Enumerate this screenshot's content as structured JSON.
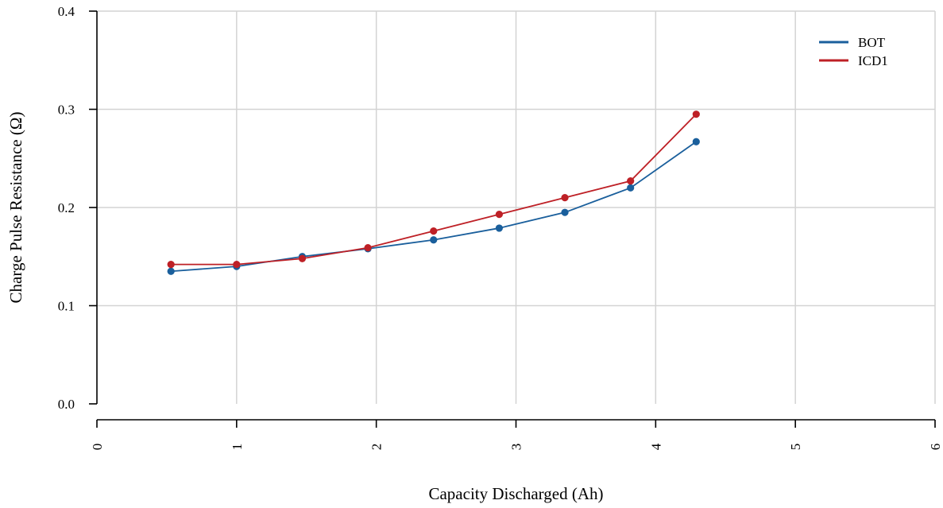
{
  "chart_data": {
    "type": "line",
    "xlabel": "Capacity Discharged (Ah)",
    "ylabel": "Charge Pulse Resistance (Ω)",
    "xlim": [
      0,
      6
    ],
    "ylim": [
      0.0,
      0.4
    ],
    "x_ticks": [
      "0",
      "1",
      "2",
      "3",
      "4",
      "5",
      "6"
    ],
    "y_ticks": [
      "0.0",
      "0.1",
      "0.2",
      "0.3",
      "0.4"
    ],
    "grid": true,
    "legend_position": "top-right",
    "series": [
      {
        "name": "BOT",
        "color": "#1a5f9c",
        "x": [
          0.53,
          1.0,
          1.47,
          1.94,
          2.41,
          2.88,
          3.35,
          3.82,
          4.29
        ],
        "y": [
          0.135,
          0.14,
          0.15,
          0.158,
          0.167,
          0.179,
          0.195,
          0.22,
          0.267
        ]
      },
      {
        "name": "ICD1",
        "color": "#be2026",
        "x": [
          0.53,
          1.0,
          1.47,
          1.94,
          2.41,
          2.88,
          3.35,
          3.82,
          4.29
        ],
        "y": [
          0.142,
          0.142,
          0.148,
          0.159,
          0.176,
          0.193,
          0.21,
          0.227,
          0.295
        ]
      }
    ]
  }
}
